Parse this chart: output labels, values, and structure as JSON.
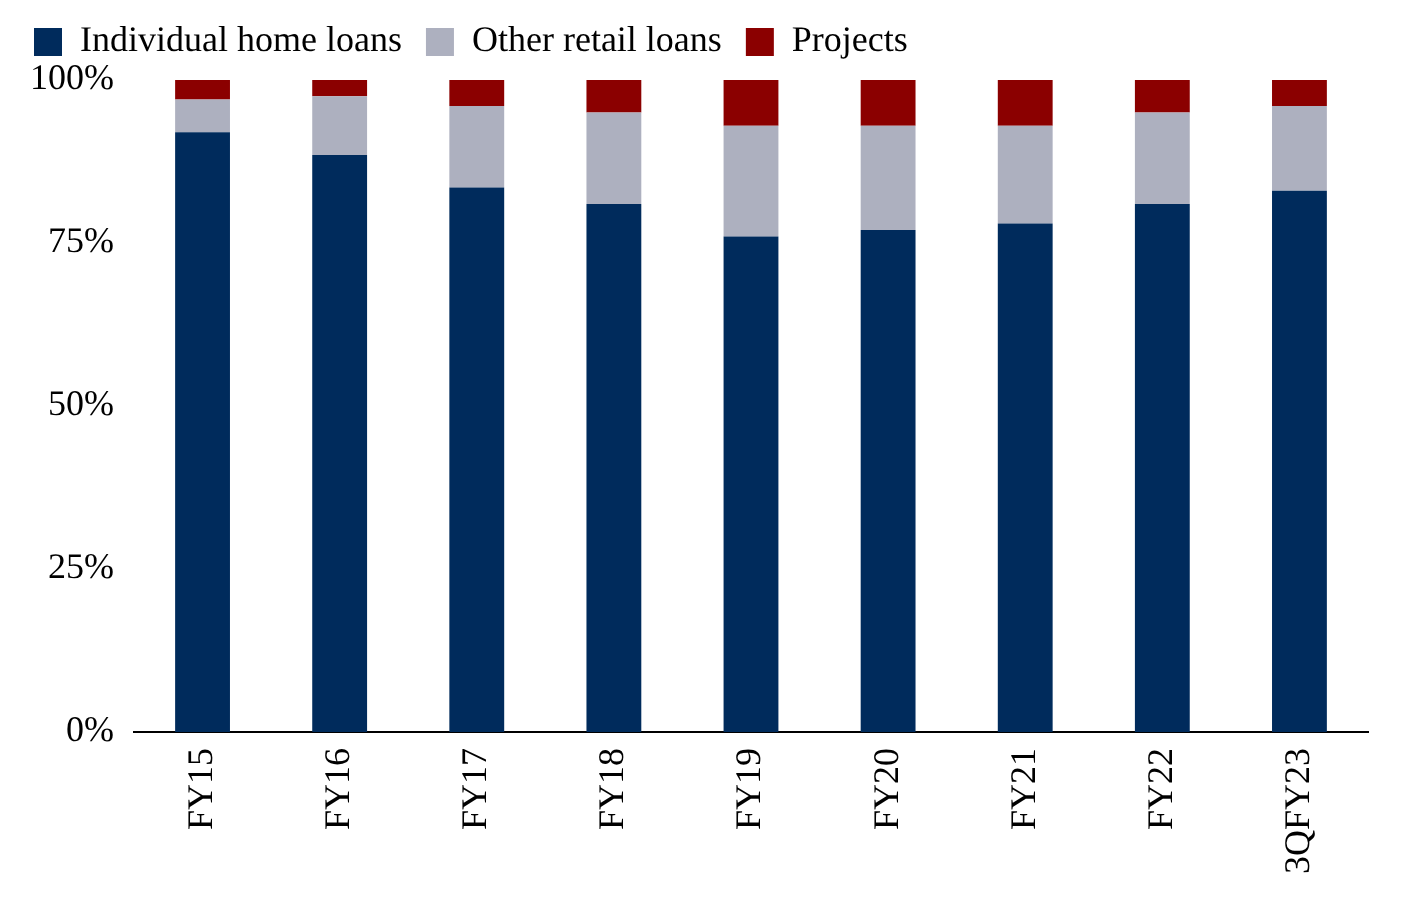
{
  "chart_data": {
    "type": "bar",
    "stacked": true,
    "categories": [
      "FY15",
      "FY16",
      "FY17",
      "FY18",
      "FY19",
      "FY20",
      "FY21",
      "FY22",
      "3QFY23"
    ],
    "series": [
      {
        "name": "Individual home loans",
        "color": "#002b5c",
        "values": [
          92,
          88.5,
          83.5,
          81,
          76,
          77,
          78,
          81,
          83
        ]
      },
      {
        "name": "Other retail loans",
        "color": "#adb0bf",
        "values": [
          5,
          9,
          12.5,
          14,
          17,
          16,
          15,
          14,
          13
        ]
      },
      {
        "name": "Projects",
        "color": "#8b0000",
        "values": [
          3,
          2.5,
          4,
          5,
          7,
          7,
          7,
          5,
          4
        ]
      }
    ],
    "ylim": [
      0,
      100
    ],
    "yticks": [
      {
        "value": 0,
        "label": "0%"
      },
      {
        "value": 25,
        "label": "25%"
      },
      {
        "value": 50,
        "label": "50%"
      },
      {
        "value": 75,
        "label": "75%"
      },
      {
        "value": 100,
        "label": "100%"
      }
    ],
    "grid": false,
    "legend": "top left"
  }
}
